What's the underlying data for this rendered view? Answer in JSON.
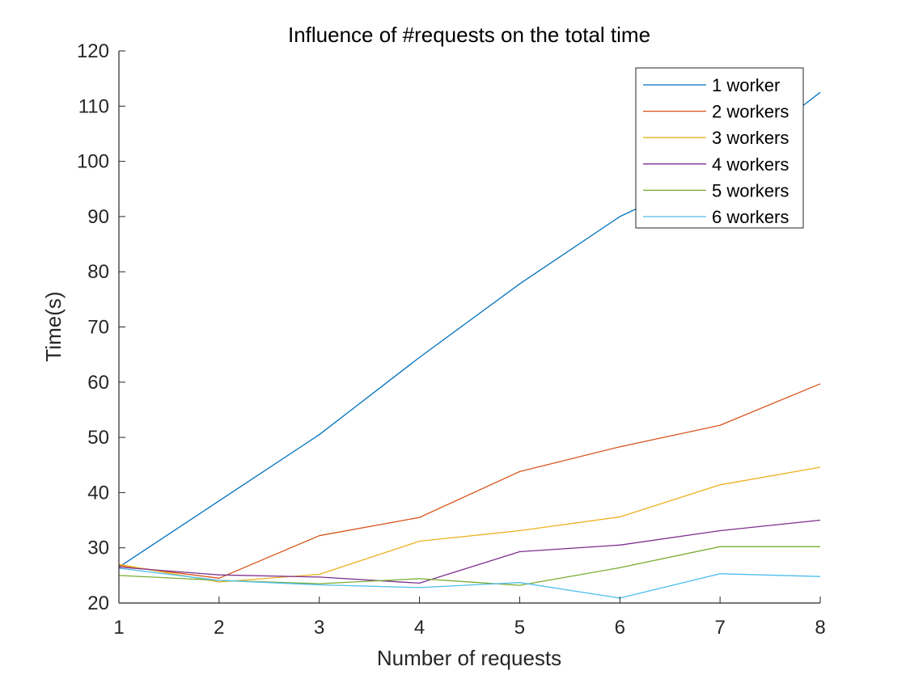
{
  "chart_data": {
    "type": "line",
    "title": "Influence of #requests on the total time",
    "xlabel": "Number of requests",
    "ylabel": "Time(s)",
    "xlim": [
      1,
      8
    ],
    "ylim": [
      20,
      120
    ],
    "x_ticks": [
      1,
      2,
      3,
      4,
      5,
      6,
      7,
      8
    ],
    "y_ticks": [
      20,
      30,
      40,
      50,
      60,
      70,
      80,
      90,
      100,
      110,
      120
    ],
    "grid": false,
    "legend_position": "top-right",
    "x": [
      1,
      2,
      3,
      4,
      5,
      6,
      7,
      8
    ],
    "series": [
      {
        "name": "1 worker",
        "color": "#0072BD",
        "values": [
          26.5,
          38.5,
          50.5,
          64.5,
          77.8,
          90.0,
          98.5,
          112.5
        ]
      },
      {
        "name": "2 workers",
        "color": "#D95319",
        "values": [
          26.8,
          24.5,
          32.2,
          35.5,
          43.8,
          48.3,
          52.2,
          59.7
        ]
      },
      {
        "name": "3 workers",
        "color": "#EDB120",
        "values": [
          27.0,
          23.8,
          25.2,
          31.2,
          33.1,
          35.6,
          41.4,
          44.6
        ]
      },
      {
        "name": "4 workers",
        "color": "#7E2F8E",
        "values": [
          26.5,
          25.1,
          24.7,
          23.6,
          29.3,
          30.5,
          33.1,
          35.0
        ]
      },
      {
        "name": "5 workers",
        "color": "#77AC30",
        "values": [
          25.0,
          24.1,
          23.5,
          24.4,
          23.2,
          26.4,
          30.2,
          30.2
        ]
      },
      {
        "name": "6 workers",
        "color": "#4DBEEE",
        "values": [
          26.3,
          24.1,
          23.3,
          22.8,
          23.7,
          20.9,
          25.3,
          24.8
        ]
      }
    ]
  }
}
